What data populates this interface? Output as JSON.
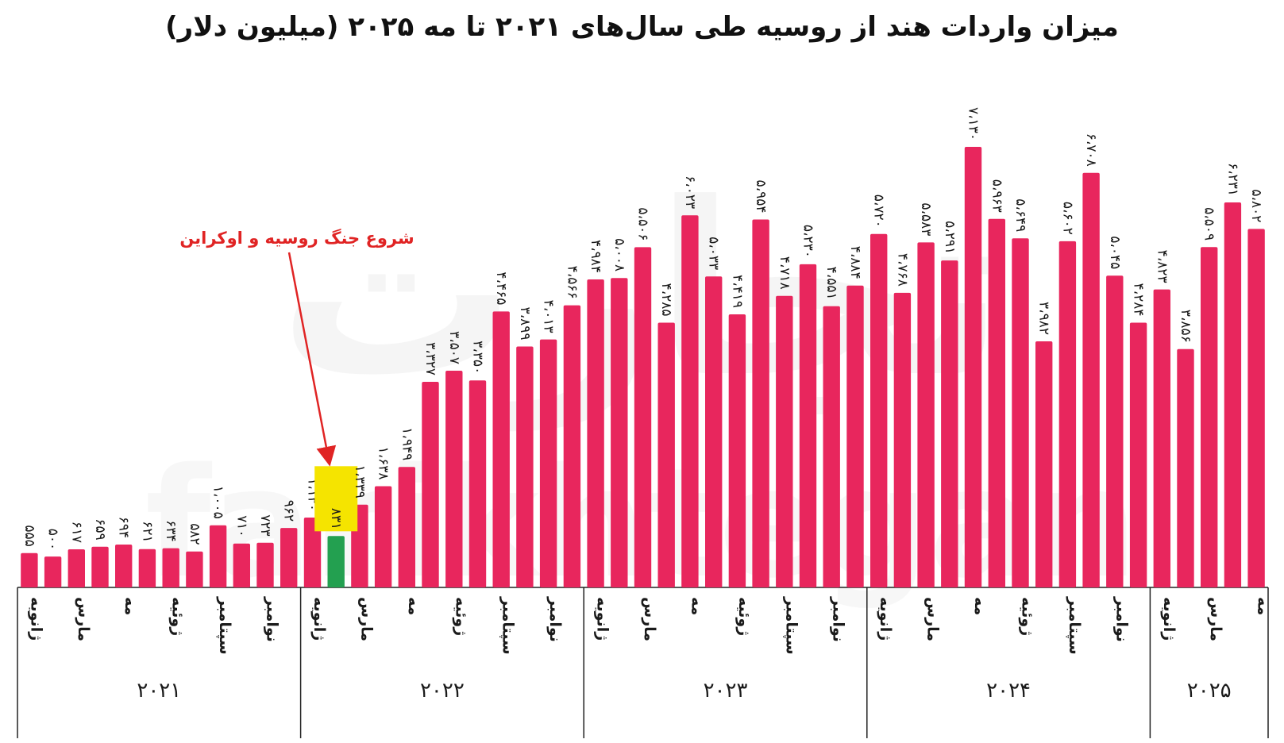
{
  "title": "میزان واردات هند از روسیه طی سال‌های ۲۰۲۱ تا مه ۲۰۲۵ (میلیون دلار)",
  "colors": {
    "bar": "#e8265d",
    "war_bar": "#23a050",
    "highlight": "#f5e400",
    "annotation": "#e02424"
  },
  "chart_data": {
    "type": "bar",
    "title": "میزان واردات هند از روسیه طی سال‌های ۲۰۲۱ تا مه ۲۰۲۵ (میلیون دلار)",
    "xlabel": "",
    "ylabel": "",
    "ylim": [
      0,
      7500
    ],
    "grid": false,
    "legend": "none",
    "annotation": {
      "text": "شروع جنگ روسیه و اوکراین",
      "target_index": 13
    },
    "highlight_index": 13,
    "groups": [
      {
        "label": "۲۰۲۱",
        "values": [
          555,
          500,
          617,
          659,
          694,
          621,
          634,
          582,
          1005,
          710,
          723,
          962
        ],
        "value_labels": [
          "۵۵۵",
          "۵۰۰",
          "۶۱۷",
          "۶۵۹",
          "۶۹۴",
          "۶۲۱",
          "۶۳۴",
          "۵۸۲",
          "۱،۰۰۵",
          "۷۱۰",
          "۷۲۳",
          "۹۶۲"
        ]
      },
      {
        "label": "۲۰۲۲",
        "values": [
          1130,
          831,
          1339,
          1638,
          1949,
          3327,
          3507,
          3350,
          4465,
          3899,
          4013,
          4566
        ],
        "value_labels": [
          "۱،۱۳۰",
          "۸۳۱",
          "۱،۳۳۹",
          "۱،۶۳۸",
          "۱،۹۴۹",
          "۳،۳۲۷",
          "۳،۵۰۷",
          "۳،۳۵۰",
          "۴،۴۶۵",
          "۳،۸۹۹",
          "۴،۰۱۳",
          "۴،۵۶۶"
        ]
      },
      {
        "label": "۲۰۲۳",
        "values": [
          4984,
          5008,
          5506,
          4285,
          6023,
          5033,
          4419,
          5954,
          4718,
          5230,
          4551,
          4884
        ],
        "value_labels": [
          "۴،۹۸۴",
          "۵،۰۰۸",
          "۵،۵۰۶",
          "۴،۲۸۵",
          "۶،۰۲۳",
          "۵،۰۳۳",
          "۴،۴۱۹",
          "۵،۹۵۴",
          "۴،۷۱۸",
          "۵،۲۳۰",
          "۴،۵۵۱",
          "۴،۸۸۴"
        ]
      },
      {
        "label": "۲۰۲۴",
        "values": [
          5720,
          4768,
          5583,
          5291,
          7130,
          5963,
          5649,
          3982,
          5602,
          6708,
          5045,
          4284
        ],
        "value_labels": [
          "۵،۷۲۰",
          "۴،۷۶۸",
          "۵،۵۸۳",
          "۵،۲۹۱",
          "۷،۱۳۰",
          "۵،۹۶۳",
          "۵،۶۴۹",
          "۳،۹۸۲",
          "۵،۶۰۲",
          "۶،۷۰۸",
          "۵،۰۴۵",
          "۴،۲۸۴"
        ]
      },
      {
        "label": "۲۰۲۵",
        "values": [
          4823,
          3856,
          5509,
          6231,
          5802
        ],
        "value_labels": [
          "۴،۸۲۳",
          "۳،۸۵۶",
          "۵،۵۰۹",
          "۶،۲۳۱",
          "۵،۸۰۲"
        ]
      }
    ],
    "month_labels": [
      "ژانویه",
      "مارس",
      "مه",
      "ژوئیه",
      "سپتامبر",
      "نوامبر"
    ],
    "month_label_positions": [
      0,
      2,
      4,
      6,
      8,
      10
    ]
  },
  "watermark": {
    "top": "تجارت",
    "bottom": "farikhtegan"
  }
}
